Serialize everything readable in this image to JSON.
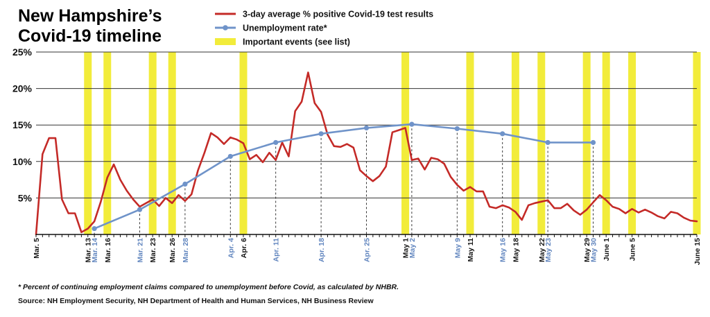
{
  "chart_data": {
    "type": "line",
    "title_lines": [
      "New Hampshire’s",
      "Covid-19 timeline"
    ],
    "xlabel": "",
    "ylabel": "",
    "ylim": [
      0,
      25
    ],
    "yticks": [
      "25%",
      "20%",
      "15%",
      "10%",
      "5%"
    ],
    "ytick_values": [
      25,
      20,
      15,
      10,
      5
    ],
    "grid": true,
    "legend_position": "top",
    "legend": [
      {
        "label": "3-day average % positive Covid-19 test results",
        "kind": "line",
        "color": "#c42a27"
      },
      {
        "label": "Unemployment rate*",
        "kind": "line-marker",
        "color": "#6f93c9"
      },
      {
        "label": "Important events (see list)",
        "kind": "band",
        "color": "#f2ec3a"
      }
    ],
    "x_start": "Mar. 5",
    "x_end": "June 15",
    "x_labels": [
      {
        "text": "Mar. 5",
        "day": 0,
        "color": "#111111"
      },
      {
        "text": "Mar. 13",
        "day": 8,
        "color": "#111111"
      },
      {
        "text": "Mar. 14",
        "day": 9,
        "color": "#5f84be"
      },
      {
        "text": "Mar. 16",
        "day": 11,
        "color": "#111111"
      },
      {
        "text": "Mar. 21",
        "day": 16,
        "color": "#5f84be"
      },
      {
        "text": "Mar. 23",
        "day": 18,
        "color": "#111111"
      },
      {
        "text": "Mar. 26",
        "day": 21,
        "color": "#111111"
      },
      {
        "text": "Mar. 28",
        "day": 23,
        "color": "#5f84be"
      },
      {
        "text": "Apr. 4",
        "day": 30,
        "color": "#5f84be"
      },
      {
        "text": "Apr. 6",
        "day": 32,
        "color": "#111111"
      },
      {
        "text": "Apr. 11",
        "day": 37,
        "color": "#5f84be"
      },
      {
        "text": "Apr. 18",
        "day": 44,
        "color": "#5f84be"
      },
      {
        "text": "Apr. 25",
        "day": 51,
        "color": "#5f84be"
      },
      {
        "text": "May 1",
        "day": 57,
        "color": "#111111"
      },
      {
        "text": "May 2",
        "day": 58,
        "color": "#5f84be"
      },
      {
        "text": "May 9",
        "day": 65,
        "color": "#5f84be"
      },
      {
        "text": "May 11",
        "day": 67,
        "color": "#111111"
      },
      {
        "text": "May 16",
        "day": 72,
        "color": "#5f84be"
      },
      {
        "text": "May 18",
        "day": 74,
        "color": "#111111"
      },
      {
        "text": "May 22",
        "day": 78,
        "color": "#111111"
      },
      {
        "text": "May 23",
        "day": 79,
        "color": "#5f84be"
      },
      {
        "text": "May 29",
        "day": 85,
        "color": "#111111"
      },
      {
        "text": "May 30",
        "day": 86,
        "color": "#5f84be"
      },
      {
        "text": "June 1",
        "day": 88,
        "color": "#111111"
      },
      {
        "text": "June 5",
        "day": 92,
        "color": "#111111"
      },
      {
        "text": "June 15",
        "day": 102,
        "color": "#111111"
      }
    ],
    "event_days": [
      8,
      11,
      18,
      21,
      32,
      57,
      67,
      74,
      78,
      85,
      88,
      92,
      102
    ],
    "series": [
      {
        "name": "3-day average % positive Covid-19 test results",
        "color": "#c42a27",
        "points": [
          [
            0,
            0
          ],
          [
            1,
            11
          ],
          [
            2,
            13.2
          ],
          [
            3,
            13.2
          ],
          [
            4,
            4.8
          ],
          [
            5,
            2.9
          ],
          [
            6,
            2.9
          ],
          [
            7,
            0.3
          ],
          [
            8,
            0.8
          ],
          [
            9,
            1.8
          ],
          [
            10,
            4.5
          ],
          [
            11,
            7.8
          ],
          [
            12,
            9.6
          ],
          [
            13,
            7.5
          ],
          [
            14,
            6
          ],
          [
            15,
            4.8
          ],
          [
            16,
            3.8
          ],
          [
            17,
            4.3
          ],
          [
            18,
            4.8
          ],
          [
            19,
            3.9
          ],
          [
            20,
            5
          ],
          [
            21,
            4.3
          ],
          [
            22,
            5.4
          ],
          [
            23,
            4.6
          ],
          [
            24,
            5.5
          ],
          [
            25,
            8.8
          ],
          [
            26,
            11.2
          ],
          [
            27,
            13.9
          ],
          [
            28,
            13.3
          ],
          [
            29,
            12.4
          ],
          [
            30,
            13.3
          ],
          [
            31,
            13
          ],
          [
            32,
            12.5
          ],
          [
            33,
            10.3
          ],
          [
            34,
            10.9
          ],
          [
            35,
            9.9
          ],
          [
            36,
            11.2
          ],
          [
            37,
            10.2
          ],
          [
            38,
            12.6
          ],
          [
            39,
            10.7
          ],
          [
            40,
            16.9
          ],
          [
            41,
            18.2
          ],
          [
            42,
            22.2
          ],
          [
            43,
            18
          ],
          [
            44,
            16.8
          ],
          [
            45,
            13.7
          ],
          [
            46,
            12.1
          ],
          [
            47,
            12
          ],
          [
            48,
            12.4
          ],
          [
            49,
            11.9
          ],
          [
            50,
            8.8
          ],
          [
            51,
            8
          ],
          [
            52,
            7.3
          ],
          [
            53,
            8
          ],
          [
            54,
            9.3
          ],
          [
            55,
            14
          ],
          [
            56,
            14.3
          ],
          [
            57,
            14.6
          ],
          [
            58,
            10.2
          ],
          [
            59,
            10.4
          ],
          [
            60,
            8.9
          ],
          [
            61,
            10.5
          ],
          [
            62,
            10.3
          ],
          [
            63,
            9.7
          ],
          [
            64,
            7.9
          ],
          [
            65,
            6.8
          ],
          [
            66,
            6
          ],
          [
            67,
            6.5
          ],
          [
            68,
            5.9
          ],
          [
            69,
            5.9
          ],
          [
            70,
            3.8
          ],
          [
            71,
            3.6
          ],
          [
            72,
            4
          ],
          [
            73,
            3.7
          ],
          [
            74,
            3.1
          ],
          [
            75,
            2
          ],
          [
            76,
            4
          ],
          [
            77,
            4.3
          ],
          [
            78,
            4.5
          ],
          [
            79,
            4.7
          ],
          [
            80,
            3.6
          ],
          [
            81,
            3.6
          ],
          [
            82,
            4.2
          ],
          [
            83,
            3.3
          ],
          [
            84,
            2.7
          ],
          [
            85,
            3.4
          ],
          [
            86,
            4.4
          ],
          [
            87,
            5.4
          ],
          [
            88,
            4.7
          ],
          [
            89,
            3.8
          ],
          [
            90,
            3.5
          ],
          [
            91,
            2.9
          ],
          [
            92,
            3.5
          ],
          [
            93,
            3
          ],
          [
            94,
            3.4
          ],
          [
            95,
            3
          ],
          [
            96,
            2.5
          ],
          [
            97,
            2.2
          ],
          [
            98,
            3.1
          ],
          [
            99,
            2.9
          ],
          [
            100,
            2.3
          ],
          [
            101,
            1.9
          ],
          [
            102,
            1.8
          ]
        ]
      },
      {
        "name": "Unemployment rate*",
        "color": "#6f93c9",
        "marker": "circle",
        "points": [
          [
            9,
            0.8
          ],
          [
            16,
            3.4
          ],
          [
            23,
            6.9
          ],
          [
            30,
            10.7
          ],
          [
            37,
            12.6
          ],
          [
            44,
            13.8
          ],
          [
            51,
            14.6
          ],
          [
            58,
            15.1
          ],
          [
            65,
            14.5
          ],
          [
            72,
            13.8
          ],
          [
            79,
            12.6
          ],
          [
            86,
            12.6
          ]
        ]
      }
    ]
  },
  "footnote": "* Percent of continuing employment claims compared to unemployment before Covid, as calculated by NHBR.",
  "source": "Source: NH Employment Security, NH Department of Health and Human Services, NH Business Review"
}
